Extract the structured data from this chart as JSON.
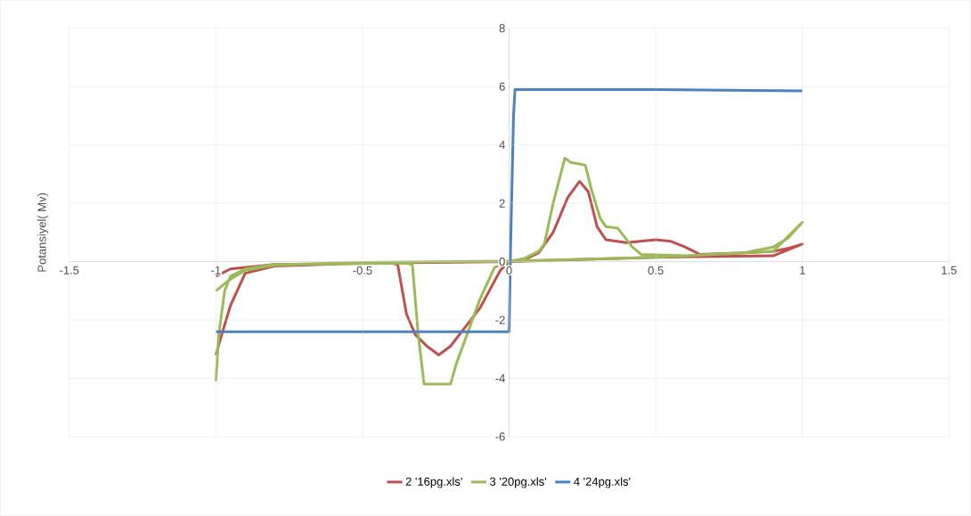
{
  "chart_data": {
    "type": "line",
    "ylabel": "Potansiyel( Mv)",
    "xlim": [
      -1.5,
      1.5
    ],
    "xticks": [
      -1.5,
      -1,
      -0.5,
      0,
      0.5,
      1,
      1.5
    ],
    "ylim": [
      -6,
      8
    ],
    "yticks": [
      -6,
      -4,
      -2,
      0,
      2,
      4,
      6,
      8
    ],
    "grid": true,
    "legend": "bottom",
    "marker": "none",
    "line_style": "solid",
    "series": [
      {
        "name": "2 '16pg.xls'",
        "color": "#c0504d",
        "x": [
          -1,
          -0.95,
          -0.8,
          -0.4,
          -0.38,
          -0.35,
          -0.32,
          -0.28,
          -0.24,
          -0.2,
          -0.1,
          -0.03,
          0,
          0.05,
          0.1,
          0.15,
          0.2,
          0.24,
          0.27,
          0.3,
          0.33,
          0.4,
          0.5,
          0.55,
          0.6,
          0.65,
          0.8,
          0.9,
          0.95,
          1,
          0.9,
          0.5,
          0,
          -0.5,
          -0.8,
          -0.9,
          -0.95,
          -0.98,
          -1
        ],
        "values": [
          -0.5,
          -0.25,
          -0.1,
          -0.05,
          -0.1,
          -1.8,
          -2.5,
          -2.9,
          -3.2,
          -2.9,
          -1.6,
          -0.3,
          0,
          0.05,
          0.3,
          1.0,
          2.2,
          2.75,
          2.4,
          1.2,
          0.75,
          0.65,
          0.75,
          0.7,
          0.5,
          0.25,
          0.3,
          0.35,
          0.45,
          0.6,
          0.2,
          0.15,
          0,
          -0.05,
          -0.15,
          -0.4,
          -1.5,
          -2.5,
          -3.2
        ]
      },
      {
        "name": "3 '20pg.xls'",
        "color": "#9bbb59",
        "x": [
          -1,
          -0.99,
          -0.97,
          -0.95,
          -0.9,
          -0.8,
          -0.35,
          -0.33,
          -0.31,
          -0.29,
          -0.2,
          -0.18,
          -0.1,
          -0.05,
          0,
          0.05,
          0.1,
          0.12,
          0.15,
          0.19,
          0.21,
          0.24,
          0.26,
          0.28,
          0.31,
          0.33,
          0.37,
          0.42,
          0.45,
          0.6,
          0.8,
          0.9,
          0.95,
          1,
          0.9,
          0.5,
          0,
          -0.5,
          -0.8,
          -0.9,
          -0.95,
          -1
        ],
        "values": [
          -4.1,
          -2.5,
          -1.0,
          -0.5,
          -0.25,
          -0.1,
          -0.05,
          -0.1,
          -2.5,
          -4.2,
          -4.2,
          -3.5,
          -1.3,
          -0.2,
          0,
          0.1,
          0.35,
          0.6,
          2.0,
          3.55,
          3.4,
          3.35,
          3.3,
          2.5,
          1.5,
          1.2,
          1.15,
          0.5,
          0.25,
          0.2,
          0.3,
          0.5,
          0.8,
          1.35,
          0.35,
          0.15,
          0.02,
          -0.03,
          -0.12,
          -0.3,
          -0.6,
          -1.0
        ]
      },
      {
        "name": "4 '24pg.xls'",
        "color": "#4f81bd",
        "x": [
          -1,
          -0.5,
          0,
          0.005,
          0.015,
          0.02,
          0.5,
          1
        ],
        "values": [
          -2.4,
          -2.4,
          -2.4,
          0.5,
          5.0,
          5.9,
          5.9,
          5.85
        ]
      }
    ]
  }
}
